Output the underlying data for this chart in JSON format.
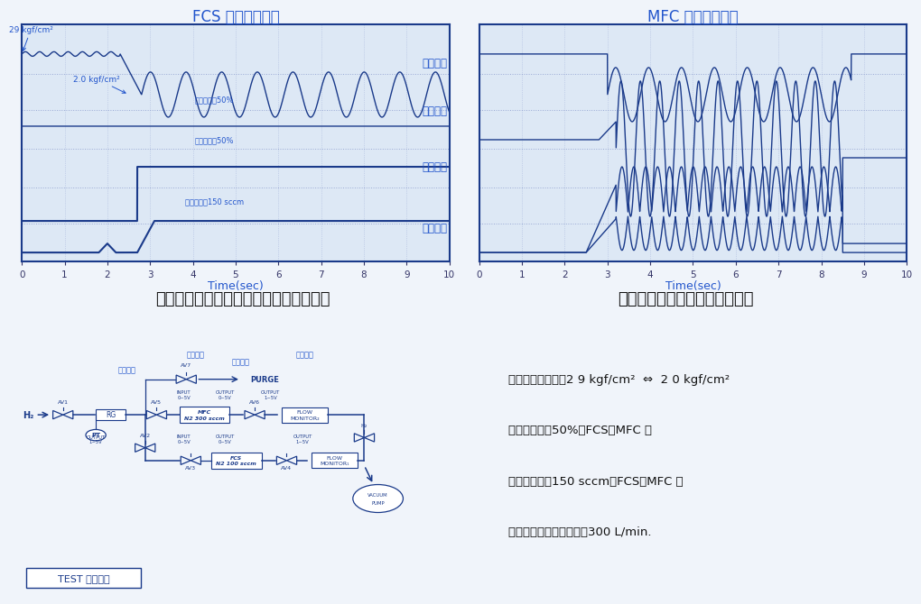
{
  "fcs_title": "FCS 信号モニター",
  "mfc_title": "MFC 信号モニター",
  "time_label": "Time(sec)",
  "fcs_supply_pressure": "供給圧力",
  "fcs_input_signal": "入力信号",
  "fcs_output_signal": "出力信号",
  "fcs_gas_flow": "ガス流量",
  "fcs_set_signal": "設定信号：50%",
  "fcs_out_val": "出力信号：50%",
  "fcs_gas_val": "ガス流量：150 sccm",
  "pressure_29": "29 kgf/cm²",
  "pressure_20": "2.0 kgf/cm²",
  "left_caption": "上流の圧力変動にまったく影響されない",
  "right_caption": "上流の圧力変動により制御不能",
  "supply_label": "供給圧力",
  "input_label": "入力信号",
  "output_label": "出力信号",
  "gas_label": "ガス流量",
  "purge_label": "PURGE",
  "test_label": "TEST フロー図",
  "bullets": [
    "・供給圧力変動：2 9 kgf/cm²  ⇔  2 0 kgf/cm²",
    "・入力信号：50%：FCS、MFC 共",
    "・設定流量：150 sccm：FCS、MFC 共",
    "・真空ポンプ排気速度：300 L/min."
  ],
  "bg_color": "#f0f4fa",
  "chart_bg": "#dde8f5",
  "border_color": "#1a3a8a",
  "line_color": "#1a3a8a",
  "title_color": "#2255cc",
  "label_color": "#2255cc",
  "grid_color": "#8899cc",
  "text_color_dark": "#1a3a8a"
}
